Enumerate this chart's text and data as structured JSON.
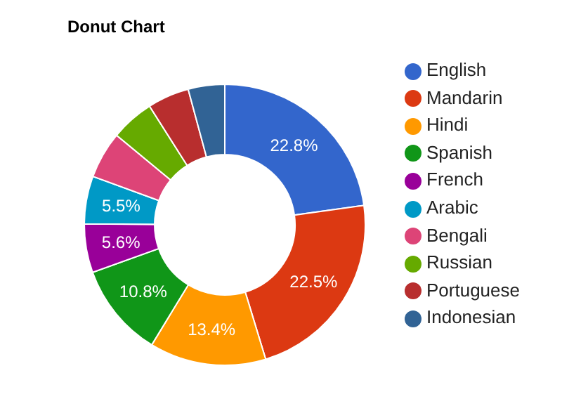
{
  "chart_data": {
    "type": "donut",
    "title": "Donut Chart",
    "categories": [
      "English",
      "Mandarin",
      "Hindi",
      "Spanish",
      "French",
      "Arabic",
      "Bengali",
      "Russian",
      "Portuguese",
      "Indonesian"
    ],
    "values": [
      22.8,
      22.5,
      13.4,
      10.8,
      5.6,
      5.5,
      5.4,
      5.0,
      4.8,
      4.2
    ],
    "value_labels": [
      "22.8%",
      "22.5%",
      "13.4%",
      "10.8%",
      "5.6%",
      "5.5%",
      null,
      null,
      null,
      null
    ],
    "colors": [
      "#3366cc",
      "#dc3912",
      "#ff9900",
      "#109618",
      "#990099",
      "#0099c6",
      "#dd4477",
      "#66aa00",
      "#b82e2e",
      "#316395"
    ],
    "legend": "right"
  }
}
